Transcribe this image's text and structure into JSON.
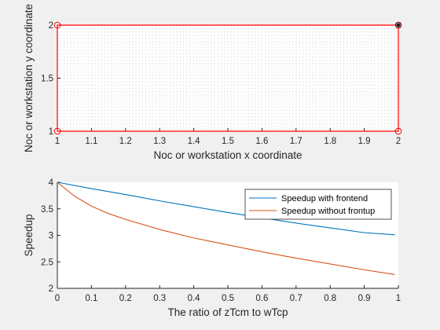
{
  "chart_data": [
    {
      "type": "scatter",
      "xlabel": "Noc or workstation x coordinate",
      "ylabel": "Noc or workstation y coordinate",
      "xlim": [
        1,
        2
      ],
      "ylim": [
        1,
        2
      ],
      "xticks": [
        1,
        1.1,
        1.2,
        1.3,
        1.4,
        1.5,
        1.6,
        1.7,
        1.8,
        1.9,
        2
      ],
      "xtick_labels": [
        "1",
        "1.1",
        "1.2",
        "1.3",
        "1.4",
        "1.5",
        "1.6",
        "1.7",
        "1.8",
        "1.9",
        "2"
      ],
      "yticks": [
        1,
        1.5,
        2
      ],
      "ytick_labels": [
        "1",
        "1.5",
        "2"
      ],
      "grid": "dense dotted",
      "series": [
        {
          "color": "#ff0000",
          "marker": "circle",
          "line": "closed",
          "x": [
            1,
            2,
            2,
            1
          ],
          "y": [
            1,
            1,
            2,
            2
          ]
        },
        {
          "color": "#000000",
          "marker": "asterisk",
          "x": [
            2
          ],
          "y": [
            2
          ]
        }
      ]
    },
    {
      "type": "line",
      "xlabel": "The ratio of zTcm to wTcp",
      "ylabel": "Speedup",
      "xlim": [
        0,
        1
      ],
      "ylim": [
        2,
        4
      ],
      "xticks": [
        0,
        0.1,
        0.2,
        0.3,
        0.4,
        0.5,
        0.6,
        0.7,
        0.8,
        0.9,
        1
      ],
      "xtick_labels": [
        "0",
        "0.1",
        "0.2",
        "0.3",
        "0.4",
        "0.5",
        "0.6",
        "0.7",
        "0.8",
        "0.9",
        "1"
      ],
      "yticks": [
        2,
        2.5,
        3,
        3.5,
        4
      ],
      "ytick_labels": [
        "2",
        "2.5",
        "3",
        "3.5",
        "4"
      ],
      "legend": "top-right",
      "series": [
        {
          "name": "Speedup with frontend",
          "color": "#0072bd",
          "x": [
            0,
            0.1,
            0.2,
            0.3,
            0.4,
            0.5,
            0.6,
            0.7,
            0.8,
            0.9,
            0.99
          ],
          "y": [
            4.0,
            3.88,
            3.77,
            3.65,
            3.54,
            3.43,
            3.33,
            3.23,
            3.14,
            3.05,
            3.01
          ]
        },
        {
          "name": "Speedup without frontup",
          "color": "#d95319",
          "x": [
            0,
            0.05,
            0.1,
            0.15,
            0.2,
            0.3,
            0.4,
            0.5,
            0.6,
            0.7,
            0.8,
            0.9,
            0.99
          ],
          "y": [
            4.0,
            3.74,
            3.55,
            3.41,
            3.3,
            3.11,
            2.95,
            2.82,
            2.69,
            2.57,
            2.46,
            2.35,
            2.26
          ]
        }
      ]
    }
  ]
}
